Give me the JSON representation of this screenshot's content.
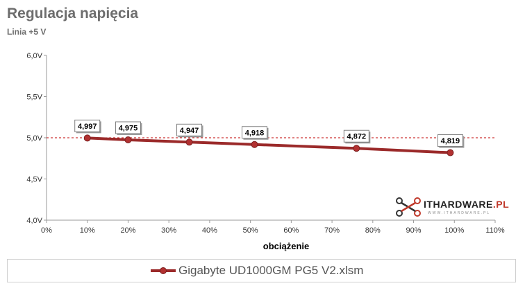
{
  "chart_data": {
    "type": "line",
    "title": "Regulacja napięcia",
    "subtitle": "Linia +5 V",
    "xlabel": "obciążenie",
    "ylabel": "",
    "xlim": [
      0,
      110
    ],
    "ylim": [
      4.0,
      6.0
    ],
    "x_ticks": [
      "0%",
      "10%",
      "20%",
      "30%",
      "40%",
      "50%",
      "60%",
      "70%",
      "80%",
      "90%",
      "100%",
      "110%"
    ],
    "y_ticks": [
      "4,0V",
      "4,5V",
      "5,0V",
      "5,5V",
      "6,0V"
    ],
    "reference_line": 5.0,
    "series": [
      {
        "name": "Gigabyte UD1000GM PG5 V2.xlsm",
        "color": "#9b2a2a",
        "x": [
          10,
          20,
          35,
          51,
          76,
          99
        ],
        "values": [
          4.997,
          4.975,
          4.947,
          4.918,
          4.872,
          4.819
        ],
        "labels": [
          "4,997",
          "4,975",
          "4,947",
          "4,918",
          "4,872",
          "4,819"
        ]
      }
    ],
    "grid": false,
    "legend_position": "bottom"
  },
  "colors": {
    "line": "#9b2a2a",
    "reference": "#c00000",
    "axis": "#999999",
    "title": "#6d6d6d"
  },
  "logo": {
    "text_main": "ITHARDWARE",
    "text_accent": ".PL",
    "tagline": "WWW.ITHARDWARE.PL",
    "icon": "drone-icon"
  }
}
